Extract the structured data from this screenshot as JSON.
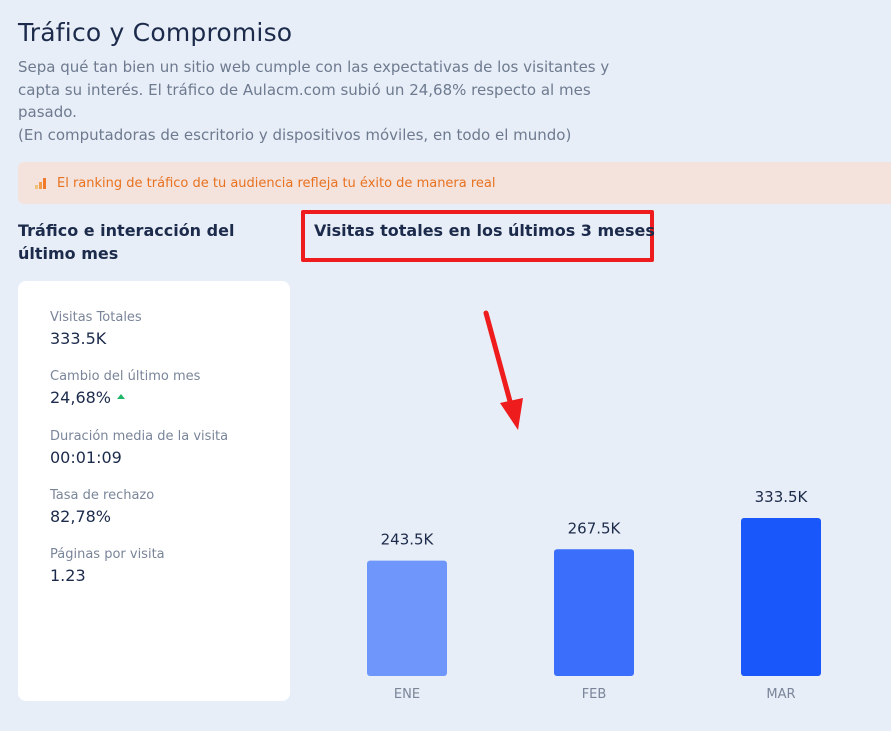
{
  "header": {
    "title": "Tráfico y Compromiso",
    "desc_line1": "Sepa qué tan bien un sitio web cumple con las expectativas de los visitantes y",
    "desc_line2": "capta su interés. El tráfico de Aulacm.com subió un 24,68% respecto al mes",
    "desc_line3": "pasado.",
    "desc_line4": "(En computadoras de escritorio y dispositivos móviles, en todo el mundo)"
  },
  "alert": {
    "icon": "bar-ranking-icon",
    "text": "El ranking de tráfico de tu audiencia refleja tu éxito de manera real"
  },
  "left_panel": {
    "title": "Tráfico e interacción del último mes",
    "stats": [
      {
        "label": "Visitas Totales",
        "value": "333.5K"
      },
      {
        "label": "Cambio del último mes",
        "value": "24,68%"
      },
      {
        "label": "Duración media de la visita",
        "value": "00:01:09"
      },
      {
        "label": "Tasa de rechazo",
        "value": "82,78%"
      },
      {
        "label": "Páginas por visita",
        "value": "1.23"
      }
    ],
    "change_trend_color": "#21b76b"
  },
  "right_panel": {
    "title": "Visitas totales en los últimos 3 meses",
    "highlight_color": "#ee1c1c",
    "annotation_arrow_color": "#ee1c1c"
  },
  "chart_data": {
    "type": "bar",
    "categories": [
      "ENE",
      "FEB",
      "MAR"
    ],
    "values": [
      243500,
      267500,
      333500
    ],
    "value_labels": [
      "243.5K",
      "267.5K",
      "333.5K"
    ],
    "colors": [
      "#6f96fb",
      "#3a6efb",
      "#1a57fb"
    ],
    "ylim": [
      0,
      380000
    ],
    "title": "Visitas totales en los últimos 3 meses",
    "xlabel": "",
    "ylabel": "",
    "grid": false
  }
}
